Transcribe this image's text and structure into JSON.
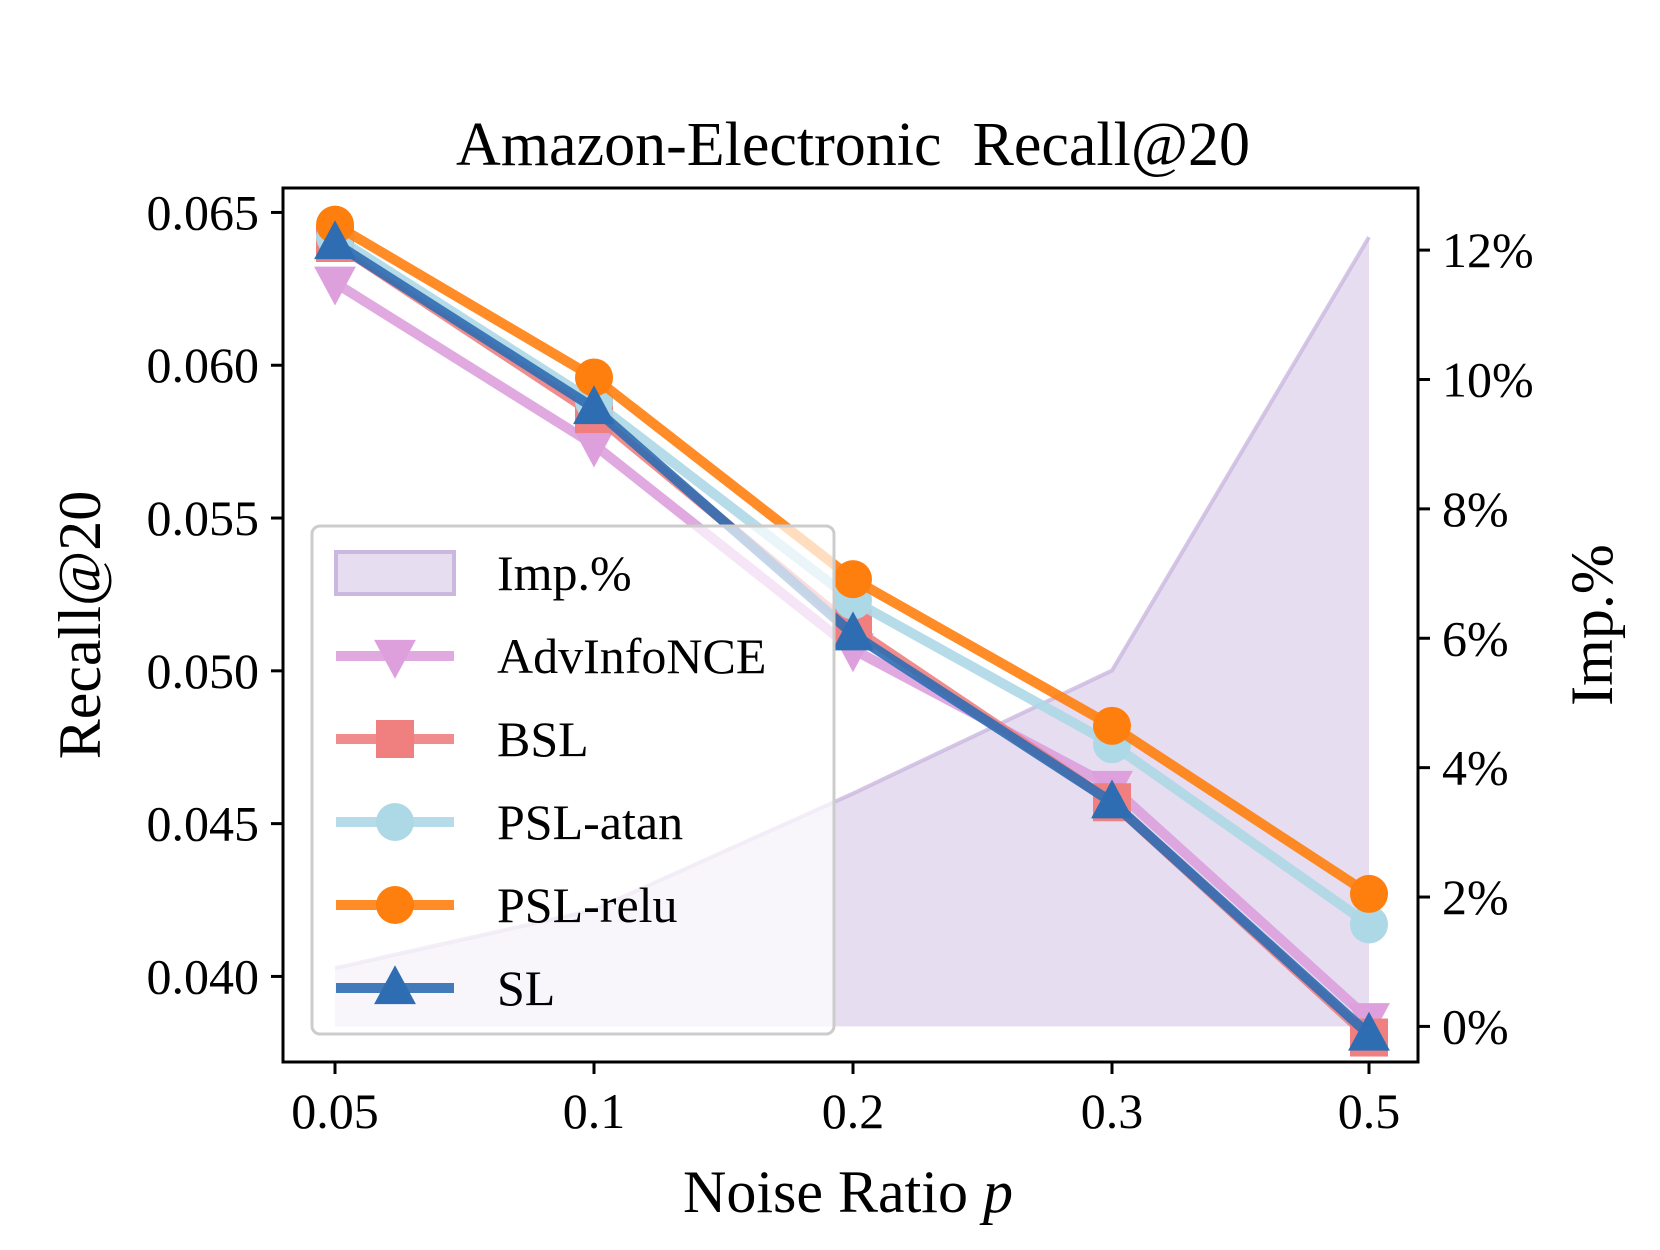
{
  "chart_data": {
    "type": "line",
    "title": "Amazon-Electronic  Recall@20",
    "xlabel": "Noise Ratio",
    "xlabel_var": "p",
    "ylabel": "Recall@20",
    "y2label": "Imp.%",
    "categories": [
      "0.05",
      "0.1",
      "0.2",
      "0.3",
      "0.5"
    ],
    "ylim": [
      0.0372,
      0.0658
    ],
    "y2lim": [
      -0.0055,
      0.1296
    ],
    "yticks": [
      0.04,
      0.045,
      0.05,
      0.055,
      0.06,
      0.065
    ],
    "ytick_labels": [
      "0.040",
      "0.045",
      "0.050",
      "0.055",
      "0.060",
      "0.065"
    ],
    "y2ticks": [
      0,
      0.02,
      0.04,
      0.06,
      0.08,
      0.1,
      0.12
    ],
    "y2tick_labels": [
      "0%",
      "2%",
      "4%",
      "6%",
      "8%",
      "10%",
      "12%"
    ],
    "grid": false,
    "legend_position": "center-left",
    "area": {
      "name": "Imp.%",
      "axis": "right",
      "values": [
        0.009,
        0.018,
        0.036,
        0.055,
        0.122
      ],
      "color": "#ded2ec"
    },
    "series": [
      {
        "name": "AdvInfoNCE",
        "marker": "triangle-down",
        "color": "#dda0dd",
        "values": [
          0.0627,
          0.0574,
          0.0507,
          0.0462,
          0.0386
        ]
      },
      {
        "name": "BSL",
        "marker": "square",
        "color": "#f08080",
        "values": [
          0.064,
          0.0584,
          0.0514,
          0.0457,
          0.038
        ]
      },
      {
        "name": "PSL-atan",
        "marker": "circle",
        "color": "#add8e6",
        "values": [
          0.0642,
          0.0588,
          0.0523,
          0.0476,
          0.0417
        ]
      },
      {
        "name": "PSL-relu",
        "marker": "circle",
        "color": "#ff7f0e",
        "values": [
          0.0646,
          0.0596,
          0.053,
          0.0482,
          0.0427
        ]
      },
      {
        "name": "SL",
        "marker": "triangle-up",
        "color": "#2f6db3",
        "values": [
          0.064,
          0.0586,
          0.0512,
          0.0457,
          0.0381
        ]
      }
    ]
  }
}
